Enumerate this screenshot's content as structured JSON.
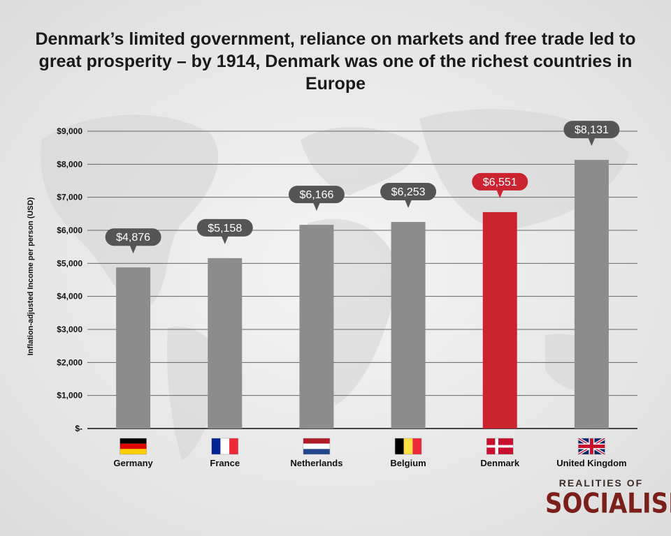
{
  "title": "Denmark’s limited government, reliance on markets and free trade led to great prosperity – by 1914, Denmark was one of the richest countries in Europe",
  "brand": {
    "top": "REALITIES OF",
    "main": "SOCIALISM"
  },
  "colors": {
    "bar": "#8c8c8c",
    "highlight": "#cc2331",
    "label_bubble": "#555555",
    "grid": "#666666"
  },
  "chart_data": {
    "type": "bar",
    "ylabel": "Inflation-adjusted Income per person (USD)",
    "ylim": [
      0,
      9000
    ],
    "yticks": [
      0,
      1000,
      2000,
      3000,
      4000,
      5000,
      6000,
      7000,
      8000,
      9000
    ],
    "ytick_labels": [
      "$-",
      "$1,000",
      "$2,000",
      "$3,000",
      "$4,000",
      "$5,000",
      "$6,000",
      "$7,000",
      "$8,000",
      "$9,000"
    ],
    "grid": true,
    "categories": [
      "Germany",
      "France",
      "Netherlands",
      "Belgium",
      "Denmark",
      "United Kingdom"
    ],
    "values": [
      4876,
      5158,
      6166,
      6253,
      6551,
      8131
    ],
    "value_labels": [
      "$4,876",
      "$5,158",
      "$6,166",
      "$6,253",
      "$6,551",
      "$8,131"
    ],
    "highlight": "Denmark",
    "flags": [
      "germany-flag",
      "france-flag",
      "netherlands-flag",
      "belgium-flag",
      "denmark-flag",
      "uk-flag"
    ]
  }
}
